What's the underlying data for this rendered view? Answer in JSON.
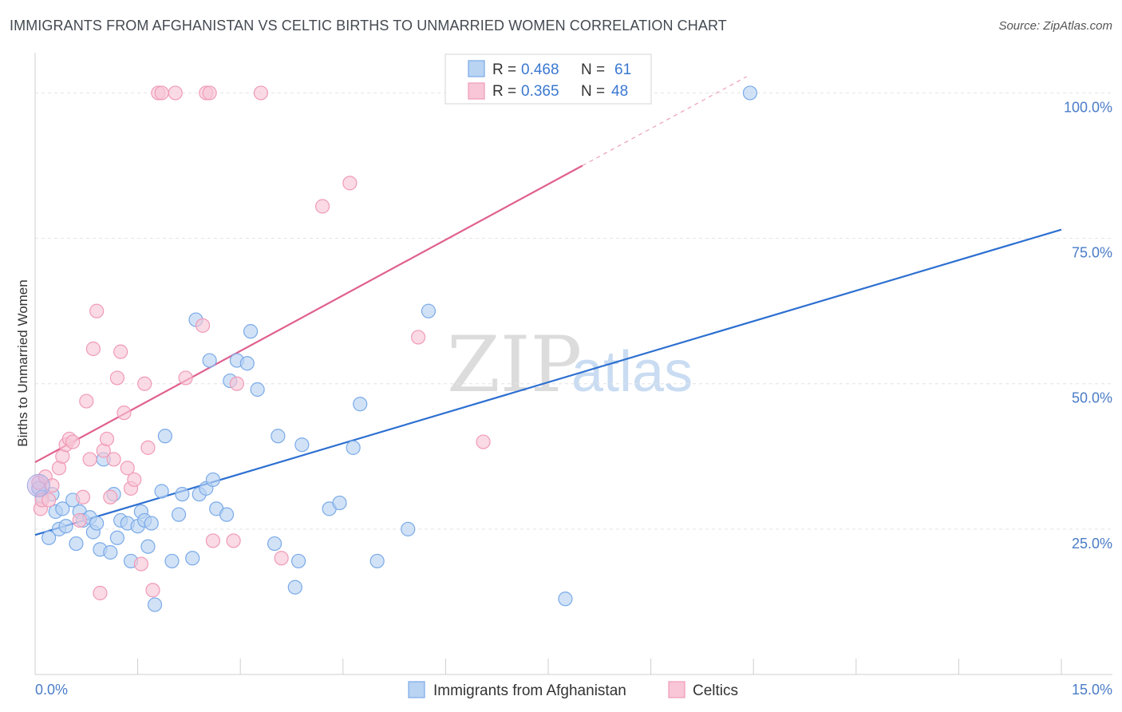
{
  "title": "IMMIGRANTS FROM AFGHANISTAN VS CELTIC BIRTHS TO UNMARRIED WOMEN CORRELATION CHART",
  "source": "Source: ZipAtlas.com",
  "watermark": {
    "zip": "ZIP",
    "atlas": "atlas"
  },
  "chart_data": {
    "type": "scatter",
    "xlabel": "",
    "ylabel": "Births to Unmarried Women",
    "xlim": [
      0,
      15
    ],
    "ylim": [
      0,
      105
    ],
    "x_tick_labels": {
      "left": "0.0%",
      "right": "15.0%"
    },
    "y_ticks": [
      {
        "value": 25,
        "label": "25.0%"
      },
      {
        "value": 50,
        "label": "50.0%"
      },
      {
        "value": 75,
        "label": "75.0%"
      },
      {
        "value": 100,
        "label": "100.0%"
      }
    ],
    "legend": {
      "rows": [
        {
          "r_label": "R = ",
          "r_value": "0.468",
          "n_label": "N = ",
          "n_value": "61"
        },
        {
          "r_label": "R = ",
          "r_value": "0.365",
          "n_label": "N = ",
          "n_value": "48"
        }
      ]
    },
    "series": [
      {
        "name": "Immigrants from Afghanistan",
        "color": "#7aaae8",
        "fill": "#b9d3f3",
        "line_color": "#2d6fd0",
        "trend": {
          "x0": 0,
          "y0": 24.0,
          "x1": 15,
          "y1": 76.5
        },
        "points": [
          [
            0.05,
            32.0
          ],
          [
            0.1,
            30.5
          ],
          [
            0.2,
            23.5
          ],
          [
            0.25,
            31.0
          ],
          [
            0.3,
            28.0
          ],
          [
            0.35,
            25.0
          ],
          [
            0.4,
            28.5
          ],
          [
            0.45,
            25.5
          ],
          [
            0.55,
            30.0
          ],
          [
            0.6,
            22.5
          ],
          [
            0.65,
            28.0
          ],
          [
            0.7,
            26.5
          ],
          [
            0.8,
            27.0
          ],
          [
            0.85,
            24.5
          ],
          [
            0.9,
            26.0
          ],
          [
            0.95,
            21.5
          ],
          [
            1.0,
            37.0
          ],
          [
            1.1,
            21.0
          ],
          [
            1.15,
            31.0
          ],
          [
            1.2,
            23.5
          ],
          [
            1.25,
            26.5
          ],
          [
            1.35,
            26.0
          ],
          [
            1.4,
            19.5
          ],
          [
            1.5,
            25.5
          ],
          [
            1.55,
            28.0
          ],
          [
            1.6,
            26.5
          ],
          [
            1.65,
            22.0
          ],
          [
            1.7,
            26.0
          ],
          [
            1.75,
            12.0
          ],
          [
            1.85,
            31.5
          ],
          [
            1.9,
            41.0
          ],
          [
            2.0,
            19.5
          ],
          [
            2.1,
            27.5
          ],
          [
            2.15,
            31.0
          ],
          [
            2.3,
            20.0
          ],
          [
            2.35,
            61.0
          ],
          [
            2.4,
            31.0
          ],
          [
            2.5,
            32.0
          ],
          [
            2.55,
            54.0
          ],
          [
            2.6,
            33.5
          ],
          [
            2.65,
            28.5
          ],
          [
            2.8,
            27.5
          ],
          [
            2.85,
            50.5
          ],
          [
            2.95,
            54.0
          ],
          [
            3.1,
            53.5
          ],
          [
            3.15,
            59.0
          ],
          [
            3.25,
            49.0
          ],
          [
            3.5,
            22.5
          ],
          [
            3.55,
            41.0
          ],
          [
            3.8,
            15.0
          ],
          [
            3.85,
            19.5
          ],
          [
            3.9,
            39.5
          ],
          [
            4.3,
            28.5
          ],
          [
            4.45,
            29.5
          ],
          [
            4.65,
            39.0
          ],
          [
            4.75,
            46.5
          ],
          [
            5.0,
            19.5
          ],
          [
            5.45,
            25.0
          ],
          [
            5.75,
            62.5
          ],
          [
            7.75,
            13.0
          ],
          [
            10.45,
            100.0
          ]
        ]
      },
      {
        "name": "Celtics",
        "color": "#f09ab8",
        "fill": "#f8c6d6",
        "line_color": "#e0608e",
        "trend": {
          "x0": 0,
          "y0": 36.5,
          "x1": 8.0,
          "y1": 87.5,
          "dash_to_x": 10.4
        },
        "points": [
          [
            0.05,
            33.0
          ],
          [
            0.08,
            28.5
          ],
          [
            0.1,
            30.0
          ],
          [
            0.15,
            34.0
          ],
          [
            0.2,
            30.0
          ],
          [
            0.25,
            32.5
          ],
          [
            0.35,
            35.5
          ],
          [
            0.4,
            37.5
          ],
          [
            0.45,
            39.5
          ],
          [
            0.5,
            40.5
          ],
          [
            0.55,
            40.0
          ],
          [
            0.65,
            26.5
          ],
          [
            0.7,
            30.5
          ],
          [
            0.75,
            47.0
          ],
          [
            0.8,
            37.0
          ],
          [
            0.85,
            56.0
          ],
          [
            0.9,
            62.5
          ],
          [
            0.95,
            14.0
          ],
          [
            1.0,
            38.5
          ],
          [
            1.05,
            40.5
          ],
          [
            1.1,
            30.5
          ],
          [
            1.15,
            37.0
          ],
          [
            1.2,
            51.0
          ],
          [
            1.25,
            55.5
          ],
          [
            1.3,
            45.0
          ],
          [
            1.35,
            35.5
          ],
          [
            1.4,
            32.0
          ],
          [
            1.45,
            33.5
          ],
          [
            1.55,
            19.0
          ],
          [
            1.6,
            50.0
          ],
          [
            1.65,
            39.0
          ],
          [
            1.72,
            14.5
          ],
          [
            1.8,
            100.0
          ],
          [
            1.85,
            100.0
          ],
          [
            2.05,
            100.0
          ],
          [
            2.2,
            51.0
          ],
          [
            2.45,
            60.0
          ],
          [
            2.5,
            100.0
          ],
          [
            2.55,
            100.0
          ],
          [
            2.6,
            23.0
          ],
          [
            2.9,
            23.0
          ],
          [
            2.95,
            50.0
          ],
          [
            3.3,
            100.0
          ],
          [
            3.6,
            20.0
          ],
          [
            4.2,
            80.5
          ],
          [
            4.6,
            84.5
          ],
          [
            5.6,
            58.0
          ],
          [
            6.55,
            40.0
          ]
        ]
      }
    ]
  }
}
